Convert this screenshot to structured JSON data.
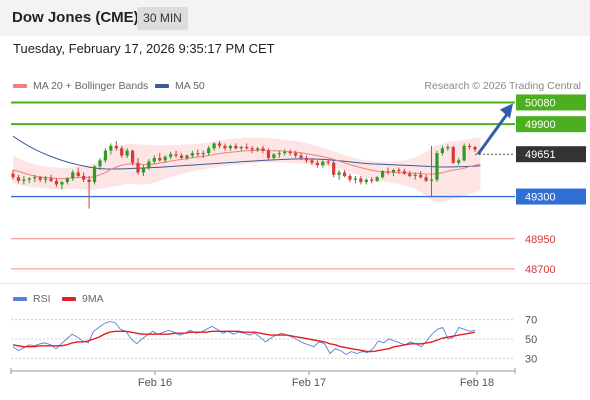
{
  "header": {
    "instrument": "Dow Jones (CME)",
    "timeframe": "30 MIN"
  },
  "datetime": "Tuesday, February 17, 2026 9:35:17 PM CET",
  "copyright": "Research © 2026 Trading Central",
  "colors": {
    "up_candle": "#2f9b1f",
    "down_candle": "#d63b3b",
    "ma20": "#f08080",
    "ma50": "#3a5a9a",
    "bollinger_fill": "#fde0e0",
    "resistance": "#4caf1f",
    "support": "#2f6fd6",
    "lower_support": "#f08a8a",
    "current_price_tag": "#333333",
    "forecast_arrow": "#2f5fa8",
    "rsi": "#5b7fd6",
    "rsi_ma": "#e02020"
  },
  "chart_data": [
    {
      "type": "candlestick",
      "legend": [
        {
          "name": "MA 20 + Bollinger Bands",
          "color": "#f08080"
        },
        {
          "name": "MA 50",
          "color": "#3a5a9a"
        }
      ],
      "x_ticks": [
        "Feb 16",
        "Feb 17",
        "Feb 18"
      ],
      "ylim": [
        48600,
        50150
      ],
      "levels": [
        {
          "value": 50080,
          "label": "50080",
          "role": "resistance",
          "style": "green-tag"
        },
        {
          "value": 49900,
          "label": "49900",
          "role": "resistance",
          "style": "green-tag"
        },
        {
          "value": 49651,
          "label": "49651",
          "role": "current",
          "style": "dark-tag"
        },
        {
          "value": 49300,
          "label": "49300",
          "role": "support",
          "style": "blue-tag"
        },
        {
          "value": 48950,
          "label": "48950",
          "role": "support",
          "style": "red-text"
        },
        {
          "value": 48700,
          "label": "48700",
          "role": "support",
          "style": "red-text"
        }
      ],
      "forecast_arrow": {
        "from": 49651,
        "to": 50080,
        "direction": "up"
      },
      "candles": [
        [
          49490,
          49520,
          49440,
          49460
        ],
        [
          49460,
          49480,
          49410,
          49430
        ],
        [
          49430,
          49470,
          49400,
          49440
        ],
        [
          49440,
          49460,
          49410,
          49450
        ],
        [
          49450,
          49480,
          49420,
          49460
        ],
        [
          49460,
          49470,
          49420,
          49440
        ],
        [
          49440,
          49470,
          49410,
          49450
        ],
        [
          49450,
          49480,
          49420,
          49430
        ],
        [
          49430,
          49450,
          49380,
          49400
        ],
        [
          49400,
          49430,
          49360,
          49420
        ],
        [
          49420,
          49460,
          49400,
          49450
        ],
        [
          49450,
          49520,
          49430,
          49500
        ],
        [
          49500,
          49540,
          49460,
          49470
        ],
        [
          49470,
          49500,
          49420,
          49440
        ],
        [
          49440,
          49470,
          49200,
          49420
        ],
        [
          49420,
          49560,
          49400,
          49550
        ],
        [
          49550,
          49620,
          49520,
          49600
        ],
        [
          49600,
          49700,
          49580,
          49680
        ],
        [
          49680,
          49740,
          49650,
          49720
        ],
        [
          49720,
          49760,
          49680,
          49700
        ],
        [
          49700,
          49720,
          49620,
          49640
        ],
        [
          49640,
          49700,
          49620,
          49680
        ],
        [
          49680,
          49690,
          49560,
          49580
        ],
        [
          49580,
          49620,
          49480,
          49500
        ],
        [
          49500,
          49560,
          49470,
          49540
        ],
        [
          49540,
          49610,
          49520,
          49590
        ],
        [
          49590,
          49640,
          49570,
          49620
        ],
        [
          49620,
          49660,
          49590,
          49600
        ],
        [
          49600,
          49640,
          49580,
          49630
        ],
        [
          49630,
          49670,
          49610,
          49650
        ],
        [
          49650,
          49680,
          49620,
          49640
        ],
        [
          49640,
          49660,
          49610,
          49620
        ],
        [
          49620,
          49650,
          49600,
          49640
        ],
        [
          49640,
          49680,
          49620,
          49660
        ],
        [
          49660,
          49690,
          49630,
          49650
        ],
        [
          49650,
          49680,
          49620,
          49660
        ],
        [
          49660,
          49720,
          49640,
          49700
        ],
        [
          49700,
          49750,
          49680,
          49740
        ],
        [
          49740,
          49760,
          49700,
          49720
        ],
        [
          49720,
          49740,
          49680,
          49700
        ],
        [
          49700,
          49730,
          49680,
          49720
        ],
        [
          49720,
          49740,
          49690,
          49700
        ],
        [
          49700,
          49720,
          49680,
          49710
        ],
        [
          49710,
          49740,
          49690,
          49700
        ],
        [
          49700,
          49720,
          49660,
          49690
        ],
        [
          49690,
          49710,
          49670,
          49700
        ],
        [
          49700,
          49720,
          49660,
          49680
        ],
        [
          49680,
          49700,
          49600,
          49620
        ],
        [
          49620,
          49660,
          49600,
          49650
        ],
        [
          49650,
          49680,
          49620,
          49660
        ],
        [
          49660,
          49690,
          49640,
          49670
        ],
        [
          49670,
          49690,
          49640,
          49660
        ],
        [
          49660,
          49680,
          49620,
          49640
        ],
        [
          49640,
          49660,
          49600,
          49620
        ],
        [
          49620,
          49640,
          49580,
          49600
        ],
        [
          49600,
          49620,
          49560,
          49580
        ],
        [
          49580,
          49600,
          49540,
          49560
        ],
        [
          49560,
          49600,
          49540,
          49590
        ],
        [
          49590,
          49610,
          49560,
          49580
        ],
        [
          49580,
          49600,
          49460,
          49480
        ],
        [
          49480,
          49520,
          49440,
          49500
        ],
        [
          49500,
          49520,
          49460,
          49470
        ],
        [
          49470,
          49490,
          49420,
          49440
        ],
        [
          49440,
          49470,
          49410,
          49450
        ],
        [
          49450,
          49470,
          49400,
          49420
        ],
        [
          49420,
          49450,
          49400,
          49440
        ],
        [
          49440,
          49460,
          49410,
          49430
        ],
        [
          49430,
          49470,
          49420,
          49460
        ],
        [
          49460,
          49520,
          49450,
          49510
        ],
        [
          49510,
          49540,
          49480,
          49500
        ],
        [
          49500,
          49530,
          49470,
          49520
        ],
        [
          49520,
          49540,
          49490,
          49510
        ],
        [
          49510,
          49530,
          49480,
          49490
        ],
        [
          49490,
          49510,
          49460,
          49470
        ],
        [
          49470,
          49500,
          49440,
          49480
        ],
        [
          49480,
          49510,
          49450,
          49460
        ],
        [
          49460,
          49480,
          49420,
          49430
        ],
        [
          49430,
          49720,
          49300,
          49440
        ],
        [
          49440,
          49680,
          49420,
          49660
        ],
        [
          49660,
          49720,
          49640,
          49700
        ],
        [
          49700,
          49730,
          49680,
          49710
        ],
        [
          49710,
          49720,
          49570,
          49580
        ],
        [
          49580,
          49620,
          49560,
          49600
        ],
        [
          49600,
          49740,
          49590,
          49720
        ],
        [
          49720,
          49740,
          49690,
          49710
        ],
        [
          49710,
          49720,
          49670,
          49690
        ]
      ],
      "ma20": [
        49520,
        49510,
        49495,
        49480,
        49470,
        49462,
        49458,
        49455,
        49450,
        49448,
        49450,
        49455,
        49458,
        49460,
        49458,
        49465,
        49480,
        49500,
        49525,
        49545,
        49560,
        49570,
        49572,
        49568,
        49565,
        49566,
        49570,
        49578,
        49585,
        49594,
        49602,
        49608,
        49615,
        49622,
        49628,
        49633,
        49640,
        49648,
        49656,
        49663,
        49668,
        49672,
        49676,
        49680,
        49682,
        49684,
        49685,
        49682,
        49680,
        49678,
        49675,
        49672,
        49668,
        49663,
        49656,
        49648,
        49640,
        49630,
        49620,
        49608,
        49595,
        49580,
        49565,
        49552,
        49540,
        49528,
        49518,
        49510,
        49506,
        49503,
        49500,
        49498,
        49496,
        49494,
        49493,
        49490,
        49487,
        49485,
        49490,
        49498,
        49510,
        49520,
        49525,
        49535,
        49548,
        49560,
        49570
      ],
      "bb_upper": [
        49640,
        49620,
        49600,
        49580,
        49565,
        49555,
        49548,
        49545,
        49540,
        49536,
        49538,
        49545,
        49552,
        49560,
        49565,
        49575,
        49595,
        49630,
        49670,
        49705,
        49725,
        49735,
        49738,
        49735,
        49730,
        49728,
        49726,
        49725,
        49724,
        49726,
        49728,
        49730,
        49732,
        49735,
        49738,
        49742,
        49748,
        49756,
        49765,
        49772,
        49778,
        49782,
        49786,
        49788,
        49790,
        49790,
        49788,
        49785,
        49780,
        49775,
        49770,
        49765,
        49760,
        49752,
        49742,
        49730,
        49718,
        49705,
        49690,
        49675,
        49660,
        49645,
        49630,
        49618,
        49608,
        49600,
        49594,
        49590,
        49588,
        49588,
        49590,
        49594,
        49600,
        49610,
        49625,
        49645,
        49670,
        49700,
        49725,
        49740,
        49752,
        49760,
        49765,
        49770,
        49778,
        49785,
        49790
      ],
      "bb_lower": [
        49400,
        49400,
        49390,
        49380,
        49375,
        49370,
        49368,
        49365,
        49360,
        49360,
        49362,
        49365,
        49364,
        49360,
        49351,
        49355,
        49365,
        49370,
        49380,
        49385,
        49395,
        49405,
        49406,
        49401,
        49400,
        49404,
        49414,
        49431,
        49446,
        49462,
        49476,
        49486,
        49498,
        49509,
        49518,
        49524,
        49532,
        49540,
        49547,
        49554,
        49558,
        49562,
        49566,
        49572,
        49574,
        49578,
        49582,
        49579,
        49580,
        49581,
        49580,
        49579,
        49576,
        49574,
        49570,
        49566,
        49562,
        49555,
        49550,
        49541,
        49530,
        49515,
        49500,
        49486,
        49472,
        49456,
        49442,
        49430,
        49424,
        49418,
        49410,
        49402,
        49392,
        49378,
        49361,
        49335,
        49304,
        49270,
        49255,
        49256,
        49268,
        49280,
        49285,
        49300,
        49318,
        49335,
        49350
      ],
      "ma50": [
        49800,
        49770,
        49742,
        49716,
        49692,
        49670,
        49650,
        49632,
        49615,
        49600,
        49586,
        49574,
        49563,
        49553,
        49544,
        49537,
        49532,
        49529,
        49528,
        49528,
        49529,
        49531,
        49533,
        49535,
        49537,
        49539,
        49541,
        49543,
        49546,
        49549,
        49552,
        49555,
        49558,
        49561,
        49564,
        49567,
        49570,
        49573,
        49576,
        49579,
        49582,
        49585,
        49588,
        49591,
        49594,
        49597,
        49600,
        49602,
        49604,
        49606,
        49608,
        49610,
        49611,
        49612,
        49612,
        49611,
        49610,
        49608,
        49605,
        49601,
        49597,
        49592,
        49587,
        49582,
        49578,
        49574,
        49571,
        49569,
        49567,
        49565,
        49563,
        49561,
        49559,
        49557,
        49555,
        49553,
        49551,
        49548,
        49546,
        49545,
        49545,
        49546,
        49547,
        49548,
        49550,
        49552,
        49555
      ]
    },
    {
      "type": "line",
      "legend": [
        {
          "name": "RSI",
          "color": "#5b7fd6"
        },
        {
          "name": "9MA",
          "color": "#e02020"
        }
      ],
      "y_ticks": [
        70,
        50,
        30
      ],
      "ylim": [
        20,
        80
      ],
      "series": [
        {
          "name": "RSI",
          "values": [
            42,
            38,
            41,
            44,
            43,
            45,
            46,
            44,
            40,
            45,
            50,
            55,
            52,
            48,
            46,
            58,
            62,
            66,
            68,
            67,
            60,
            58,
            50,
            45,
            50,
            54,
            58,
            55,
            57,
            59,
            57,
            54,
            56,
            59,
            56,
            57,
            60,
            63,
            60,
            56,
            58,
            55,
            57,
            56,
            54,
            56,
            52,
            47,
            51,
            54,
            56,
            54,
            52,
            49,
            46,
            44,
            42,
            47,
            45,
            35,
            40,
            38,
            34,
            37,
            35,
            37,
            36,
            40,
            48,
            46,
            50,
            48,
            46,
            44,
            47,
            45,
            42,
            48,
            55,
            60,
            62,
            50,
            52,
            62,
            60,
            58,
            59
          ]
        },
        {
          "name": "9MA",
          "values": [
            44,
            43,
            42,
            42,
            42,
            43,
            43,
            43,
            43,
            43,
            44,
            46,
            47,
            47,
            48,
            50,
            52,
            55,
            57,
            58,
            58,
            58,
            57,
            56,
            55,
            55,
            55,
            55,
            55,
            55,
            56,
            56,
            56,
            57,
            57,
            57,
            57,
            58,
            58,
            58,
            58,
            58,
            58,
            57,
            57,
            57,
            56,
            55,
            54,
            54,
            54,
            54,
            53,
            52,
            51,
            50,
            49,
            48,
            47,
            45,
            44,
            42,
            41,
            40,
            39,
            38,
            37,
            37,
            38,
            39,
            40,
            42,
            43,
            44,
            45,
            45,
            45,
            46,
            47,
            49,
            51,
            52,
            53,
            54,
            55,
            56,
            57
          ]
        }
      ]
    }
  ]
}
